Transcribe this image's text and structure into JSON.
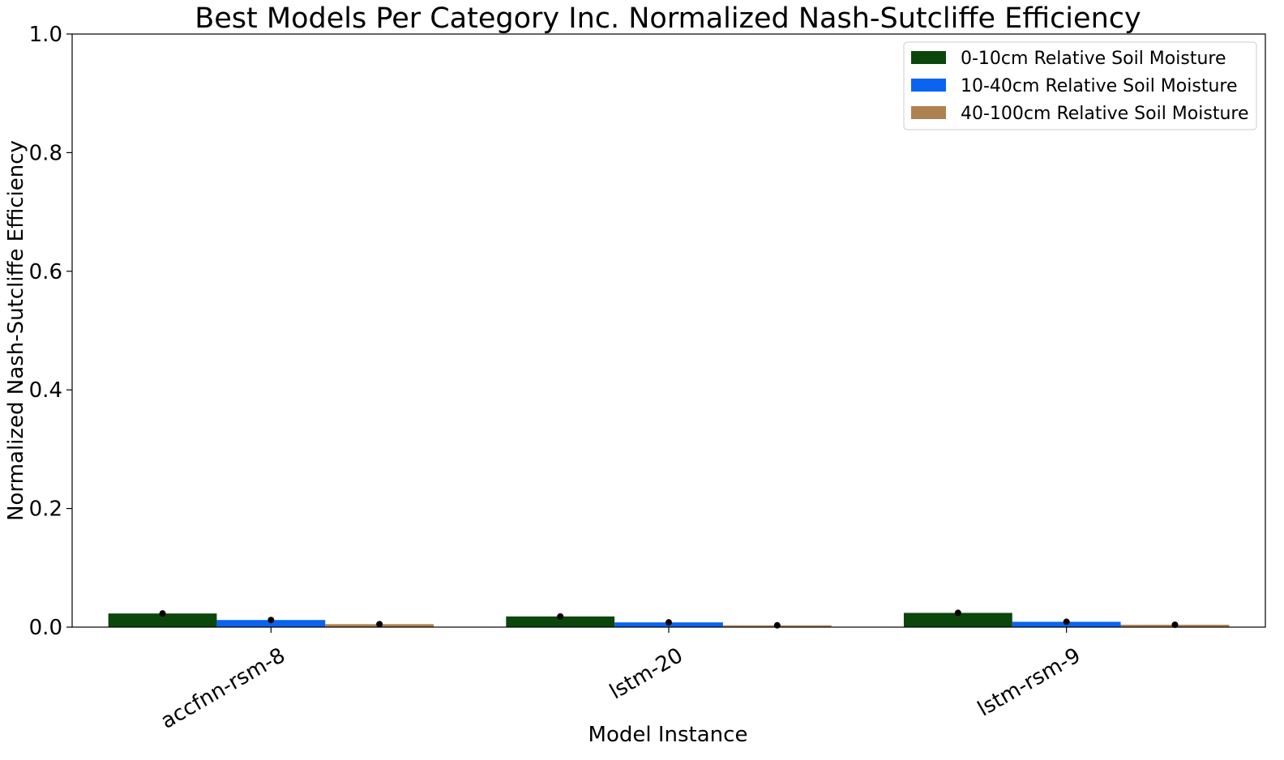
{
  "chart_data": {
    "type": "bar",
    "title": "Best Models Per Category Inc. Normalized Nash-Sutcliffe Efficiency",
    "xlabel": "Model Instance",
    "ylabel": "Normalized Nash-Sutcliffe Efficiency",
    "ylim": [
      0,
      1.0
    ],
    "yticks": [
      "0.0",
      "0.2",
      "0.4",
      "0.6",
      "0.8",
      "1.0"
    ],
    "categories": [
      "accfnn-rsm-8",
      "lstm-20",
      "lstm-rsm-9"
    ],
    "series": [
      {
        "name": "0-10cm Relative Soil Moisture",
        "color": "#0b470b",
        "values": [
          0.023,
          0.018,
          0.024
        ]
      },
      {
        "name": "10-40cm Relative Soil Moisture",
        "color": "#0a64f0",
        "values": [
          0.012,
          0.008,
          0.009
        ]
      },
      {
        "name": "40-100cm Relative Soil Moisture",
        "color": "#ad8250",
        "values": [
          0.005,
          0.003,
          0.004
        ]
      }
    ],
    "markers": "mean-dot",
    "grid": false,
    "legend_position": "top-right"
  }
}
